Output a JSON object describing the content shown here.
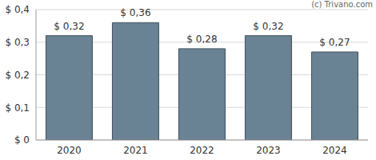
{
  "chart_data": {
    "type": "bar",
    "categories": [
      "2020",
      "2021",
      "2022",
      "2023",
      "2024"
    ],
    "values": [
      0.32,
      0.36,
      0.28,
      0.32,
      0.27
    ],
    "value_labels": [
      "$ 0,32",
      "$ 0,36",
      "$ 0,28",
      "$ 0,32",
      "$ 0,27"
    ],
    "data_labels": true,
    "color": "#6a8394",
    "ylim": [
      0,
      0.4
    ],
    "yticks": [
      {
        "value": 0,
        "label": "$ 0"
      },
      {
        "value": 0.1,
        "label": "$ 0,1"
      },
      {
        "value": 0.2,
        "label": "$ 0,2"
      },
      {
        "value": 0.3,
        "label": "$ 0,3"
      },
      {
        "value": 0.4,
        "label": "$ 0,4"
      }
    ],
    "grid": true,
    "annotations": [
      "(c) Trivano.com"
    ]
  }
}
